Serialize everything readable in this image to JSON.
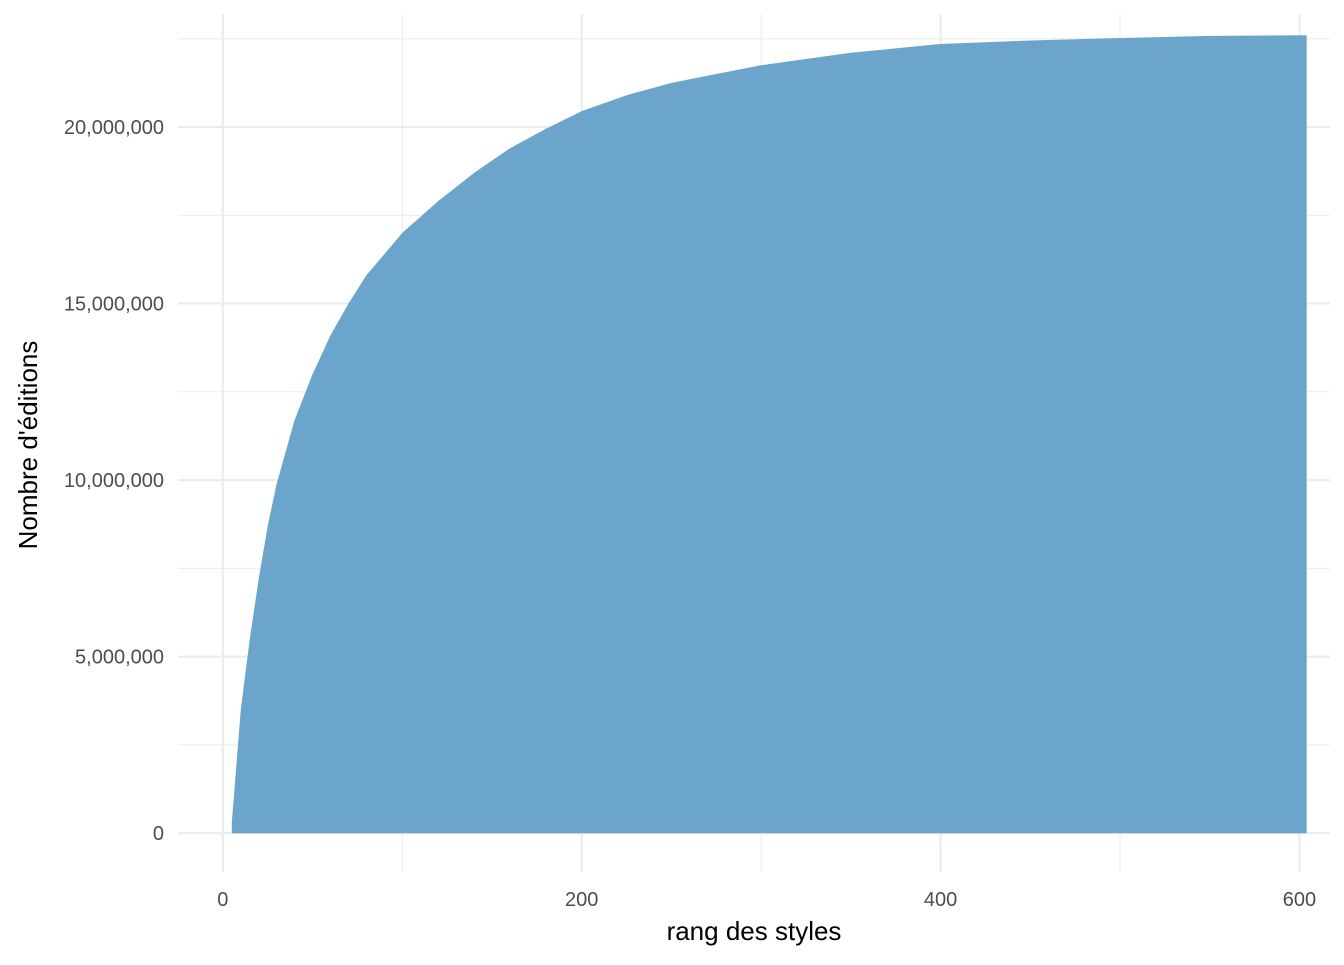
{
  "chart_data": {
    "type": "area",
    "title": "",
    "xlabel": "rang des styles",
    "ylabel": "Nombre d'éditions",
    "xlim": [
      -25,
      617
    ],
    "ylim": [
      -1100000,
      23200000
    ],
    "x_ticks": [
      0,
      200,
      400,
      600
    ],
    "x_tick_labels": [
      "0",
      "200",
      "400",
      "600"
    ],
    "y_ticks": [
      0,
      5000000,
      10000000,
      15000000,
      20000000
    ],
    "y_tick_labels": [
      "0",
      "5,000,000",
      "10,000,000",
      "15,000,000",
      "20,000,000"
    ],
    "grid": true,
    "legend": "none",
    "fill_color": "#6CA5CB",
    "grid_color": "#EBEBEB",
    "series": [
      {
        "x": [
          5,
          10,
          15,
          20,
          25,
          30,
          40,
          50,
          60,
          70,
          80,
          90,
          100,
          120,
          140,
          160,
          180,
          200,
          225,
          250,
          275,
          300,
          350,
          400,
          450,
          500,
          550,
          604
        ],
        "values": [
          300000,
          3500000,
          5500000,
          7200000,
          8700000,
          9900000,
          11700000,
          13000000,
          14100000,
          15000000,
          15800000,
          16400000,
          17000000,
          17900000,
          18700000,
          19400000,
          19950000,
          20450000,
          20900000,
          21250000,
          21500000,
          21750000,
          22100000,
          22350000,
          22450000,
          22520000,
          22580000,
          22600000
        ]
      }
    ]
  }
}
